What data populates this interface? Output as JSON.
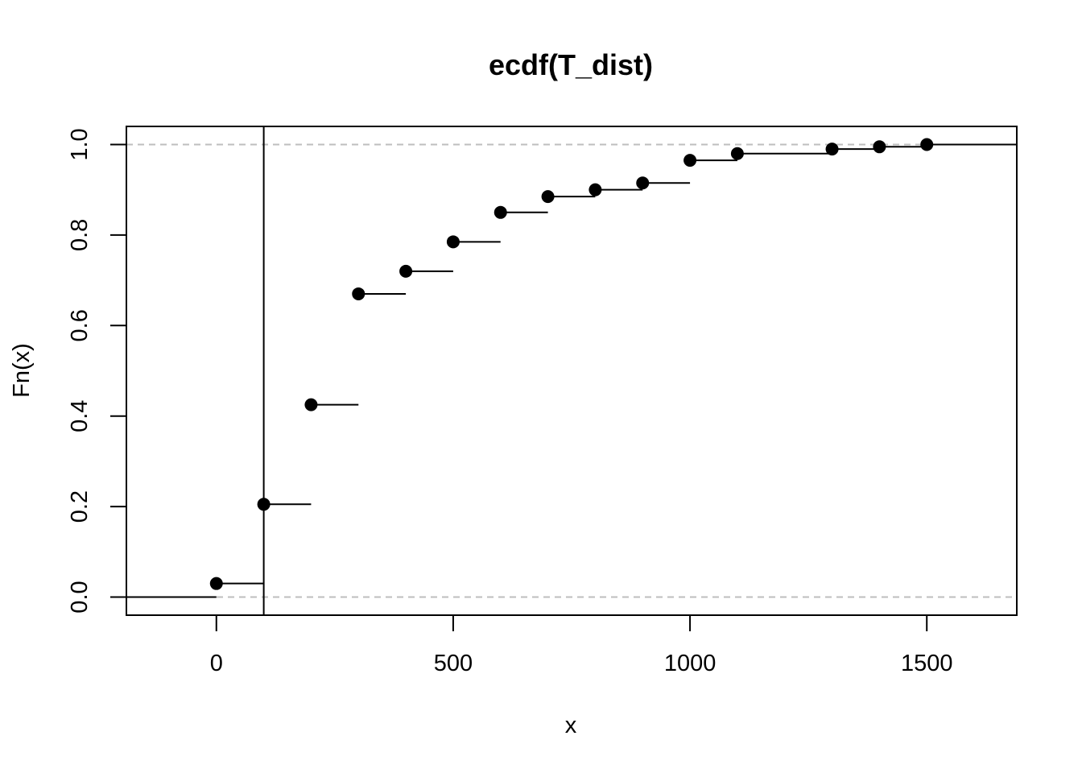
{
  "chart_data": {
    "type": "line",
    "subtype": "step-ecdf",
    "title": "ecdf(T_dist)",
    "xlabel": "x",
    "ylabel": "Fn(x)",
    "xlim": [
      -190,
      1690
    ],
    "ylim": [
      -0.04,
      1.04
    ],
    "x_ticks": [
      0,
      500,
      1000,
      1500
    ],
    "y_ticks": [
      0.0,
      0.2,
      0.4,
      0.6,
      0.8,
      1.0
    ],
    "x_tick_labels": [
      "0",
      "500",
      "1000",
      "1500"
    ],
    "y_tick_labels": [
      "0.0",
      "0.2",
      "0.4",
      "0.6",
      "0.8",
      "1.0"
    ],
    "reference_lines_y": [
      0,
      1
    ],
    "vertical_line_x": 100,
    "grid": false,
    "legend": "none",
    "points": [
      {
        "x": 0,
        "y": 0.03
      },
      {
        "x": 100,
        "y": 0.205
      },
      {
        "x": 200,
        "y": 0.425
      },
      {
        "x": 300,
        "y": 0.67
      },
      {
        "x": 400,
        "y": 0.72
      },
      {
        "x": 500,
        "y": 0.785
      },
      {
        "x": 600,
        "y": 0.85
      },
      {
        "x": 700,
        "y": 0.885
      },
      {
        "x": 800,
        "y": 0.9
      },
      {
        "x": 900,
        "y": 0.915
      },
      {
        "x": 1000,
        "y": 0.965
      },
      {
        "x": 1100,
        "y": 0.98
      },
      {
        "x": 1300,
        "y": 0.99
      },
      {
        "x": 1400,
        "y": 0.995
      },
      {
        "x": 1500,
        "y": 1.0
      }
    ],
    "colors": {
      "points": "#000000",
      "steps": "#000000",
      "reference": "#bebebe"
    }
  }
}
